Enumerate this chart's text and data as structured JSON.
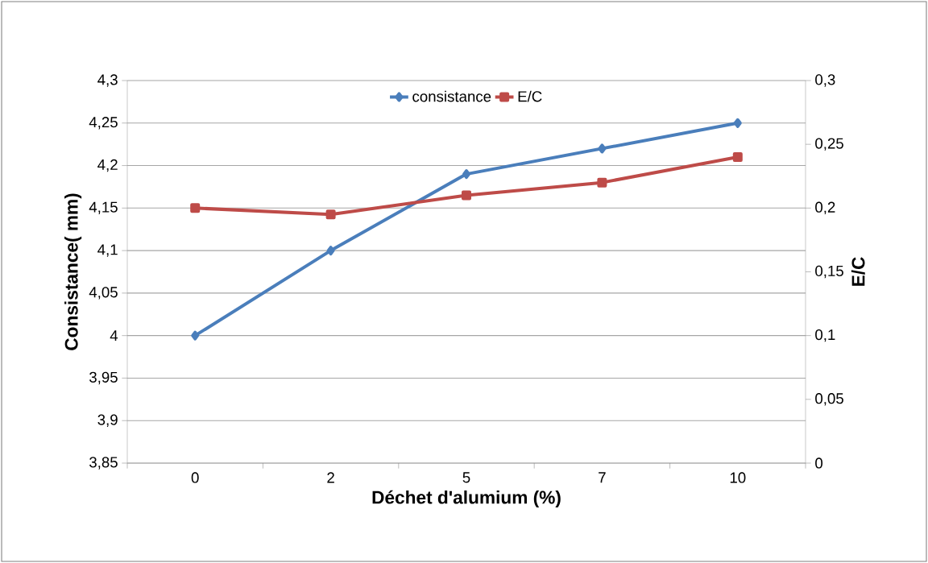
{
  "chart_data": {
    "type": "line",
    "xlabel": "Déchet d'alumium (%)",
    "ylabel": "Consistance( mm)",
    "y2label": "E/C",
    "categories": [
      "0",
      "2",
      "5",
      "7",
      "10"
    ],
    "series": [
      {
        "name": "consistance",
        "color": "#4a7ebb",
        "marker": "diamond",
        "values": [
          4.0,
          4.1,
          4.19,
          4.22,
          4.25
        ]
      },
      {
        "name": "E/C",
        "color": "#be4b48",
        "marker": "square",
        "axis": "y2",
        "values": [
          0.2,
          0.195,
          0.21,
          0.22,
          0.24
        ]
      }
    ],
    "ylim": [
      3.85,
      4.3
    ],
    "yticks": [
      {
        "value": 3.85,
        "label": "3,85"
      },
      {
        "value": 3.9,
        "label": "3,9"
      },
      {
        "value": 3.95,
        "label": "3,95"
      },
      {
        "value": 4,
        "label": "4"
      },
      {
        "value": 4.05,
        "label": "4,05"
      },
      {
        "value": 4.1,
        "label": "4,1"
      },
      {
        "value": 4.15,
        "label": "4,15"
      },
      {
        "value": 4.2,
        "label": "4,2"
      },
      {
        "value": 4.25,
        "label": "4,25"
      },
      {
        "value": 4.3,
        "label": "4,3"
      }
    ],
    "y2lim": [
      0,
      0.3
    ],
    "y2ticks": [
      0,
      {
        "value": 0.05,
        "label": "0,05"
      },
      {
        "value": 0.1,
        "label": "0,1"
      },
      {
        "value": 0.15,
        "label": "0,15"
      },
      {
        "value": 0.2,
        "label": "0,2"
      },
      {
        "value": 0.25,
        "label": "0,25"
      },
      {
        "value": 0.3,
        "label": "0,3"
      }
    ],
    "grid": "y",
    "legend": "top",
    "line_style": "solid"
  }
}
